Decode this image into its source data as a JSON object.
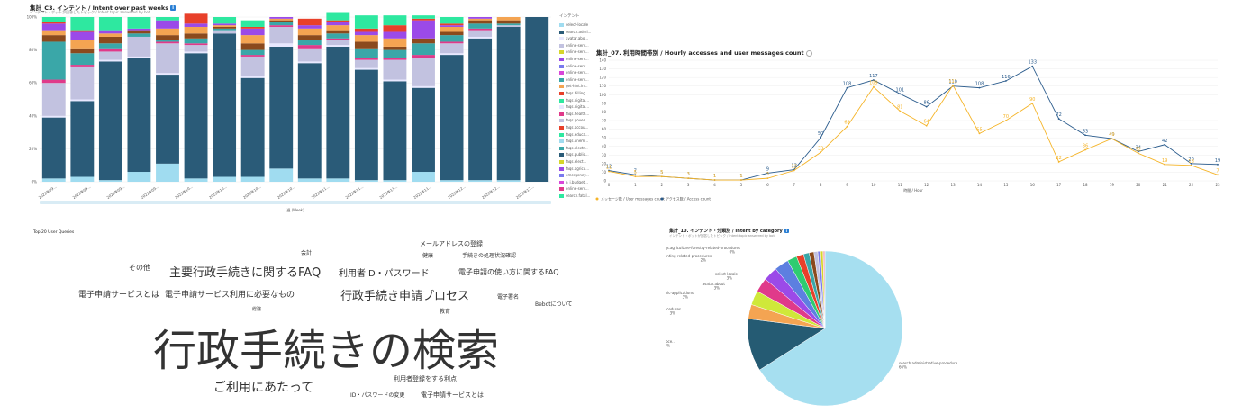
{
  "panel1": {
    "title": "集計_C3. インテント / Intent over past weeks",
    "subtitle": "インテント・ボットが回答したトピック / Intent topic answered by bot",
    "legend_title": "インテント",
    "xlabel": "週 (Week)",
    "chart_data": {
      "type": "bar",
      "stacked": true,
      "title": "集計_C3. インテント / Intent over past weeks",
      "xlabel": "週 (Week)",
      "ylabel": "",
      "ylim": [
        0,
        100
      ],
      "yticks": [
        "0%",
        "20%",
        "40%",
        "60%",
        "80%",
        "100%"
      ],
      "categories": [
        "2022年09...",
        "2022年09...",
        "2022年09...",
        "2022年09...",
        "2022年09...",
        "2022年10...",
        "2022年10...",
        "2022年10...",
        "2022年10...",
        "2022年10...",
        "2022年11...",
        "2022年11...",
        "2022年11...",
        "2022年11...",
        "2022年11...",
        "2022年12...",
        "2022年12...",
        "2022年12..."
      ],
      "category_labels_shown": [
        "2022年09...",
        "2022年09...",
        "2022年09...",
        "2022年09...",
        "2022年10...",
        "2022年10...",
        "2022年10...",
        "2022年10...",
        "2022年11...",
        "2022年11...",
        "2022年11...",
        "2022年11...",
        "2022年12...",
        "2022年12...",
        "2022年12..."
      ],
      "series": [
        {
          "name": "select-locale",
          "color": "#a0dcf0",
          "values": [
            2,
            3,
            1,
            6,
            11,
            2,
            3,
            3,
            8,
            2,
            2,
            1,
            1,
            6,
            1,
            1,
            1,
            0
          ]
        },
        {
          "name": "search.admi...",
          "color": "#2a5b78",
          "values": [
            37,
            46,
            72,
            69,
            54,
            76,
            87,
            60,
            74,
            70,
            80,
            67,
            60,
            51,
            76,
            86,
            93,
            100
          ]
        },
        {
          "name": "avatar.abo...",
          "color": "#e8e8ff",
          "values": [
            1,
            1,
            1,
            1,
            1,
            1,
            0,
            1,
            2,
            1,
            1,
            1,
            1,
            1,
            1,
            1,
            0,
            0
          ]
        },
        {
          "name": "online-serv...",
          "color": "#c2c2e0",
          "values": [
            20,
            20,
            5,
            12,
            18,
            4,
            2,
            12,
            10,
            8,
            3,
            5,
            12,
            17,
            6,
            4,
            1,
            0
          ]
        },
        {
          "name": "faqs.health...",
          "color": "#e03a8a",
          "values": [
            2,
            1,
            2,
            0,
            1,
            1,
            0,
            1,
            1,
            2,
            1,
            1,
            1,
            2,
            1,
            1,
            0,
            0
          ]
        },
        {
          "name": "faqs.major...",
          "color": "#3aa7a8",
          "values": [
            23,
            7,
            3,
            2,
            1,
            3,
            1,
            3,
            2,
            3,
            3,
            6,
            5,
            7,
            4,
            3,
            1,
            0
          ]
        },
        {
          "name": "faqs.electro...",
          "color": "#8b4a1d",
          "values": [
            4,
            3,
            4,
            2,
            3,
            3,
            1,
            4,
            1,
            3,
            2,
            4,
            2,
            3,
            2,
            2,
            2,
            0
          ]
        },
        {
          "name": "faqs.elect2",
          "color": "#f4a452",
          "values": [
            3,
            5,
            2,
            0,
            4,
            4,
            1,
            5,
            1,
            4,
            3,
            4,
            5,
            0,
            3,
            1,
            2,
            0
          ]
        },
        {
          "name": "faqs.acco...",
          "color": "#9b4ae8",
          "values": [
            4,
            5,
            2,
            1,
            5,
            2,
            1,
            4,
            1,
            2,
            2,
            2,
            4,
            11,
            1,
            1,
            0,
            0
          ]
        },
        {
          "name": "online-serv...",
          "color": "#e8402a",
          "values": [
            1,
            1,
            0,
            0,
            0,
            6,
            0,
            1,
            0,
            4,
            1,
            2,
            4,
            1,
            1,
            0,
            0,
            0
          ]
        },
        {
          "name": "faqs.agri...",
          "color": "#2ee8a0",
          "values": [
            3,
            8,
            8,
            7,
            2,
            0,
            4,
            4,
            0,
            0,
            5,
            8,
            6,
            2,
            4,
            0,
            0,
            0
          ]
        }
      ]
    },
    "legend": [
      "select-locale",
      "search.admi...",
      "avatar.abo...",
      "online-serv...",
      "online-serv...",
      "online-serv...",
      "online-serv...",
      "online-serv...",
      "online-serv...",
      "get-hint.in...",
      "faqs.billing",
      "faqs.digital...",
      "faqs.digital...",
      "faqs.health...",
      "faqs.gover...",
      "faqs.accou...",
      "faqs.educa...",
      "faqs.unem...",
      "faqs.electr...",
      "faqs.public...",
      "faqs.elect...",
      "faqs.agricu...",
      "emergency...",
      "n_j.budget...",
      "online-serv...",
      "search.fatal..."
    ],
    "legend_colors": [
      "#a0dcf0",
      "#2a5b78",
      "#e8e8ff",
      "#c2c2e0",
      "#d6d62a",
      "#9b4ae8",
      "#7a7aee",
      "#d946d9",
      "#3aa7a8",
      "#f4a452",
      "#e8402a",
      "#2ee8a0",
      "#e8e8ff",
      "#e03a8a",
      "#c2c2e0",
      "#e8402a",
      "#2ee8a0",
      "#a0dcf0",
      "#3aa7a8",
      "#2a5b78",
      "#d6d62a",
      "#9b4ae8",
      "#7a7aee",
      "#d946d9",
      "#e03a8a",
      "#2ee8a0"
    ]
  },
  "panel2": {
    "title": "集計_07. 利用時間帯別 / Hourly accesses and user messages count",
    "xlabel": "時間 / Hour",
    "chart_data": {
      "type": "line",
      "title": "集計_07. 利用時間帯別 / Hourly accesses and user messages count",
      "xlabel": "時間 / Hour",
      "ylabel": "",
      "x": [
        0,
        1,
        2,
        3,
        4,
        5,
        6,
        7,
        8,
        9,
        10,
        11,
        12,
        13,
        14,
        15,
        16,
        17,
        18,
        19,
        20,
        21,
        22,
        23
      ],
      "ylim": [
        0,
        140
      ],
      "yticks": [
        0,
        10,
        20,
        30,
        40,
        50,
        60,
        70,
        80,
        90,
        100,
        110,
        120,
        130,
        140
      ],
      "series": [
        {
          "name": "アクセス数 / Access count",
          "color": "#2a5b8c",
          "values": [
            12,
            7,
            5,
            3,
            1,
            1,
            9,
            13,
            50,
            108,
            117,
            101,
            86,
            110,
            108,
            116,
            133,
            72,
            53,
            49,
            34,
            42,
            20,
            19
          ],
          "labels": [
            12,
            7,
            5,
            3,
            1,
            1,
            9,
            13,
            50,
            108,
            117,
            101,
            86,
            110,
            108,
            116,
            133,
            72,
            53,
            49,
            34,
            42,
            20,
            19
          ]
        },
        {
          "name": "メッセージ数 / User messages count",
          "color": "#f5b428",
          "values": [
            11,
            5,
            5,
            3,
            1,
            1,
            3,
            12,
            33,
            63,
            109,
            81,
            64,
            111,
            55,
            70,
            90,
            22,
            36,
            49,
            32,
            19,
            18,
            7
          ],
          "labels": [
            11,
            5,
            5,
            3,
            1,
            1,
            3,
            12,
            33,
            63,
            109,
            81,
            64,
            111,
            55,
            70,
            90,
            22,
            36,
            49,
            32,
            19,
            18,
            7
          ]
        }
      ]
    },
    "legend": [
      {
        "label": "メッセージ数 / User messages count",
        "color": "#f5b428"
      },
      {
        "label": "アクセス数 / Access count",
        "color": "#2a5b8c"
      }
    ]
  },
  "panel3": {
    "title": "Top 20 User Queries",
    "words": [
      {
        "text": "行政手続きの検索",
        "size": 48,
        "weight": "normal"
      },
      {
        "text": "主要行政手続きに関するFAQ",
        "size": 13,
        "weight": "normal"
      },
      {
        "text": "行政手続き申請プロセス",
        "size": 13,
        "weight": "normal"
      },
      {
        "text": "ご利用にあたって",
        "size": 14,
        "weight": "normal"
      },
      {
        "text": "利用者ID・パスワード",
        "size": 10,
        "weight": "normal"
      },
      {
        "text": "電子申請サービスとは",
        "size": 9,
        "weight": "normal"
      },
      {
        "text": "電子申請サービス利用に必要なもの",
        "size": 9,
        "weight": "normal"
      },
      {
        "text": "電子申請の使い方に関するFAQ",
        "size": 8,
        "weight": "normal"
      },
      {
        "text": "メールアドレスの登録",
        "size": 7,
        "weight": "normal"
      },
      {
        "text": "手続きの処理状況確認",
        "size": 6,
        "weight": "normal"
      },
      {
        "text": "その他",
        "size": 8,
        "weight": "normal"
      },
      {
        "text": "会計",
        "size": 6,
        "weight": "normal"
      },
      {
        "text": "健康",
        "size": 6,
        "weight": "normal"
      },
      {
        "text": "電子署名",
        "size": 6,
        "weight": "normal"
      },
      {
        "text": "Bebotについて",
        "size": 6,
        "weight": "normal"
      },
      {
        "text": "総務",
        "size": 5,
        "weight": "normal"
      },
      {
        "text": "教育",
        "size": 6,
        "weight": "normal"
      },
      {
        "text": "利用者登録をする利点",
        "size": 7,
        "weight": "normal"
      },
      {
        "text": "ID・パスワードの変更",
        "size": 6,
        "weight": "normal"
      },
      {
        "text": "電子申請サービスとは",
        "size": 7,
        "weight": "normal"
      }
    ]
  },
  "panel4": {
    "title": "集計_10. インテント・分類別 / Intent by category",
    "subtitle": "インテント・ボットが回答したトピック / Intent topic answered by bot",
    "chart_data": {
      "type": "pie",
      "title": "集計_10. インテント・分類別 / Intent by category",
      "slices": [
        {
          "label": "search.administrative-procedure",
          "value": 66,
          "color": "#a6dff0",
          "pct": "66%"
        },
        {
          "label": "faqs.major-administrative-proce...",
          "value": 11,
          "color": "#255b73",
          "pct": "11%"
        },
        {
          "label": "faqs.health-related-procedures",
          "value": 3,
          "color": "#f4a452",
          "pct": "3%"
        },
        {
          "label": "",
          "value": 3,
          "color": "#cfe83a",
          "pct": ""
        },
        {
          "label": "faqs.electronic-applications",
          "value": 3,
          "color": "#e03a8a",
          "pct": "3%"
        },
        {
          "label": "avatar.about",
          "value": 3,
          "color": "#9b4ae8",
          "pct": "3%"
        },
        {
          "label": "select-locale",
          "value": 3,
          "color": "#5d7fe0",
          "pct": "3%"
        },
        {
          "label": "faqs.accounting-related-procedures",
          "value": 2,
          "color": "#2ecc71",
          "pct": "2%"
        },
        {
          "label": "",
          "value": 1.5,
          "color": "#e8402a",
          "pct": ""
        },
        {
          "label": "",
          "value": 1.2,
          "color": "#3aa7a8",
          "pct": ""
        },
        {
          "label": "",
          "value": 1,
          "color": "#8b4a1d",
          "pct": ""
        },
        {
          "label": "",
          "value": 0.8,
          "color": "#c2c2e0",
          "pct": ""
        },
        {
          "label": "",
          "value": 0.6,
          "color": "#7a7aee",
          "pct": ""
        },
        {
          "label": "",
          "value": 0.5,
          "color": "#d6d62a",
          "pct": ""
        },
        {
          "label": "faqs.agriculture-forestry-related-procedures",
          "value": 0.4,
          "color": "#f0b0c0",
          "pct": "0%"
        }
      ]
    }
  }
}
